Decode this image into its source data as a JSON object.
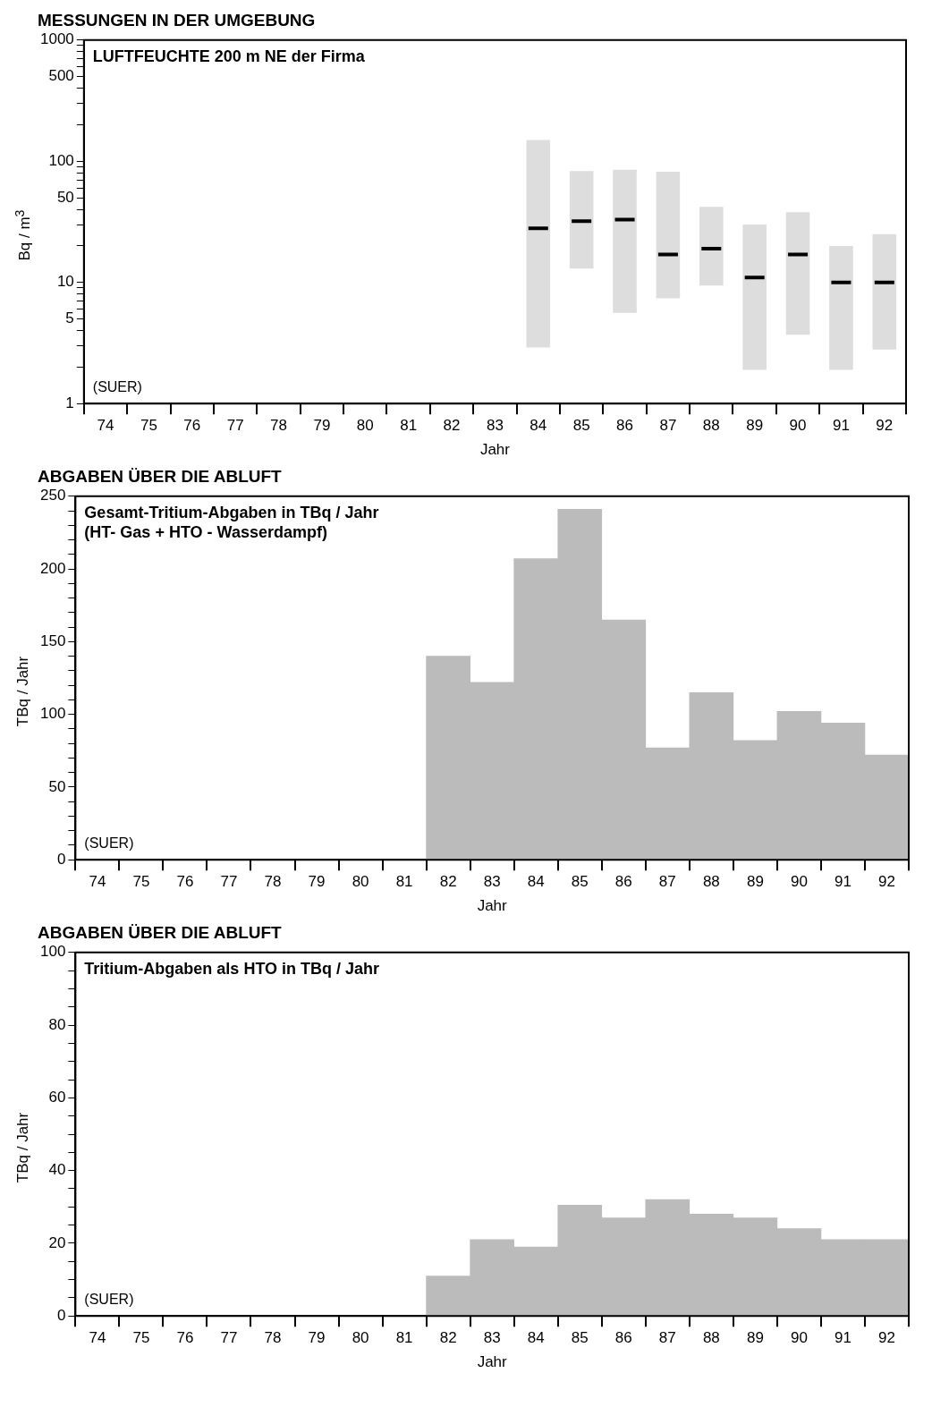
{
  "chart_data": [
    {
      "type": "box",
      "title": "MESSUNGEN IN DER UMGEBUNG",
      "xlabel": "Jahr",
      "ylabel": "Bq / m$^{3}$",
      "log": "y",
      "color": "#dddddd",
      "categories": [
        "74",
        "75",
        "76",
        "77",
        "78",
        "79",
        "80",
        "81",
        "82",
        "83",
        "84",
        "85",
        "86",
        "87",
        "88",
        "89",
        "90",
        "91",
        "92"
      ],
      "boxes": [
        null,
        null,
        null,
        null,
        null,
        null,
        null,
        null,
        null,
        null,
        {
          "low": 2.9,
          "q1": 2.9,
          "median": 28,
          "q3": 150,
          "high": 150
        },
        {
          "low": 13,
          "q1": 13,
          "median": 32,
          "q3": 83,
          "high": 83
        },
        {
          "low": 5.6,
          "q1": 5.6,
          "median": 33,
          "q3": 85,
          "high": 85
        },
        {
          "low": 7.4,
          "q1": 7.4,
          "median": 17,
          "q3": 82,
          "high": 82
        },
        {
          "low": 9.4,
          "q1": 9.4,
          "median": 19,
          "q3": 42,
          "high": 42
        },
        {
          "low": 1.9,
          "q1": 1.9,
          "median": 11,
          "q3": 30,
          "high": 30
        },
        {
          "low": 3.7,
          "q1": 3.7,
          "median": 17,
          "q3": 38,
          "high": 38
        },
        {
          "low": 1.9,
          "q1": 1.9,
          "median": 10,
          "q3": 20,
          "high": 20
        },
        {
          "low": 2.8,
          "q1": 2.8,
          "median": 10,
          "q3": 25,
          "high": 25
        }
      ],
      "ylim": [
        1,
        1000
      ],
      "yticks": [
        1,
        {
          "value": 2,
          "label": null
        },
        {
          "value": 3,
          "label": null
        },
        {
          "value": 4,
          "label": null
        },
        5,
        {
          "value": 6,
          "label": null
        },
        {
          "value": 7,
          "label": null
        },
        {
          "value": 8,
          "label": null
        },
        {
          "value": 9,
          "label": null
        },
        10,
        {
          "value": 20,
          "label": null
        },
        {
          "value": 30,
          "label": null
        },
        {
          "value": 40,
          "label": null
        },
        50,
        {
          "value": 60,
          "label": null
        },
        {
          "value": 70,
          "label": null
        },
        {
          "value": 80,
          "label": null
        },
        {
          "value": 90,
          "label": null
        },
        100,
        {
          "value": 200,
          "label": null
        },
        {
          "value": 300,
          "label": null
        },
        {
          "value": 400,
          "label": null
        },
        500,
        {
          "value": 600,
          "label": null
        },
        {
          "value": 700,
          "label": null
        },
        {
          "value": 800,
          "label": null
        },
        {
          "value": 900,
          "label": null
        },
        1000
      ],
      "annotations": [
        "LUFTFEUCHTE 200 m NE der Firma",
        "(SUER)"
      ]
    },
    {
      "type": "bar",
      "title": "ABGABEN ÜBER DIE ABLUFT",
      "xlabel": "Jahr",
      "ylabel": "TBq / Jahr",
      "color": "#bbbbbb",
      "categories": [
        "74",
        "75",
        "76",
        "77",
        "78",
        "79",
        "80",
        "81",
        "82",
        "83",
        "84",
        "85",
        "86",
        "87",
        "88",
        "89",
        "90",
        "91",
        "92"
      ],
      "values": [
        null,
        null,
        null,
        null,
        null,
        null,
        null,
        null,
        140,
        122,
        207,
        241,
        165,
        77,
        115,
        82,
        102,
        94,
        72
      ],
      "ylim": [
        0,
        250
      ],
      "yticks": [
        0,
        {
          "value": 10,
          "label": null
        },
        {
          "value": 20,
          "label": null
        },
        {
          "value": 30,
          "label": null
        },
        {
          "value": 40,
          "label": null
        },
        50,
        {
          "value": 60,
          "label": null
        },
        {
          "value": 70,
          "label": null
        },
        {
          "value": 80,
          "label": null
        },
        {
          "value": 90,
          "label": null
        },
        100,
        {
          "value": 110,
          "label": null
        },
        {
          "value": 120,
          "label": null
        },
        {
          "value": 130,
          "label": null
        },
        {
          "value": 140,
          "label": null
        },
        150,
        {
          "value": 160,
          "label": null
        },
        {
          "value": 170,
          "label": null
        },
        {
          "value": 180,
          "label": null
        },
        {
          "value": 190,
          "label": null
        },
        200,
        {
          "value": 210,
          "label": null
        },
        {
          "value": 220,
          "label": null
        },
        {
          "value": 230,
          "label": null
        },
        {
          "value": 240,
          "label": null
        },
        250
      ],
      "annotations": [
        "Gesamt-Tritium-Abgaben in TBq / Jahr",
        "(HT- Gas + HTO - Wasserdampf)",
        "(SUER)"
      ]
    },
    {
      "type": "bar",
      "title": "ABGABEN ÜBER DIE ABLUFT",
      "xlabel": "Jahr",
      "ylabel": "TBq / Jahr",
      "color": "#bbbbbb",
      "categories": [
        "74",
        "75",
        "76",
        "77",
        "78",
        "79",
        "80",
        "81",
        "82",
        "83",
        "84",
        "85",
        "86",
        "87",
        "88",
        "89",
        "90",
        "91",
        "92"
      ],
      "values": [
        null,
        null,
        null,
        null,
        null,
        null,
        null,
        null,
        11,
        21,
        19,
        30.5,
        27,
        32,
        28,
        27,
        24,
        21,
        21
      ],
      "ylim": [
        0,
        100
      ],
      "yticks": [
        0,
        {
          "value": 5,
          "label": null
        },
        {
          "value": 10,
          "label": null
        },
        {
          "value": 15,
          "label": null
        },
        20,
        {
          "value": 25,
          "label": null
        },
        {
          "value": 30,
          "label": null
        },
        {
          "value": 35,
          "label": null
        },
        40,
        {
          "value": 45,
          "label": null
        },
        {
          "value": 50,
          "label": null
        },
        {
          "value": 55,
          "label": null
        },
        60,
        {
          "value": 65,
          "label": null
        },
        {
          "value": 70,
          "label": null
        },
        {
          "value": 75,
          "label": null
        },
        80,
        {
          "value": 85,
          "label": null
        },
        {
          "value": 90,
          "label": null
        },
        {
          "value": 95,
          "label": null
        },
        100
      ],
      "annotations": [
        "Tritium-Abgaben als HTO in TBq / Jahr",
        "(SUER)"
      ]
    }
  ]
}
